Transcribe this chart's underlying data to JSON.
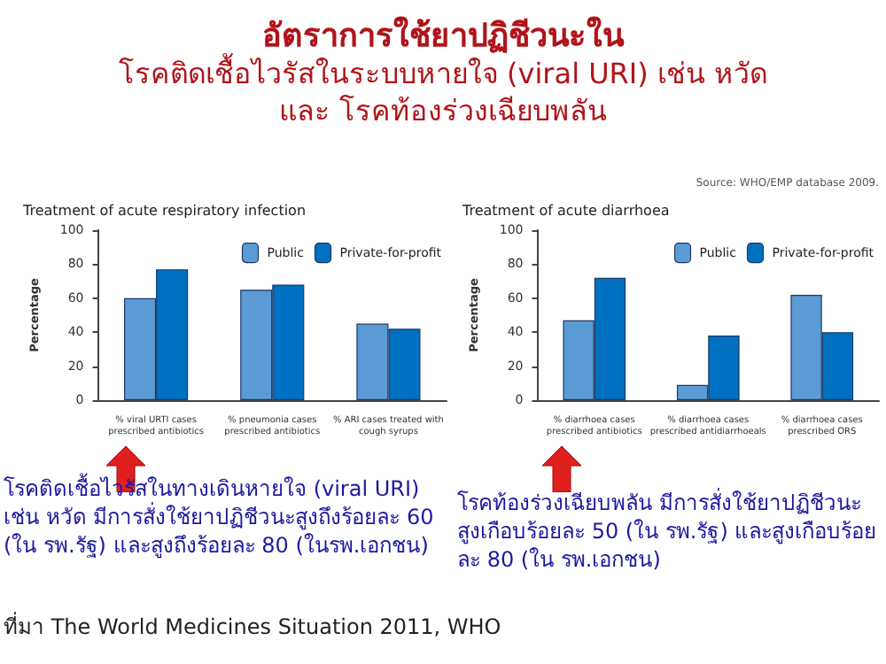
{
  "chart_data": [
    {
      "type": "bar",
      "title": "Treatment of acute respiratory infection",
      "ylabel": "Percentage",
      "categories": [
        "% viral URTI cases\nprescribed antibiotics",
        "% pneumonia cases\nprescribed antibiotics",
        "% ARI cases treated with\ncough syrups"
      ],
      "series": [
        {
          "name": "Public",
          "color": "#5b9bd5",
          "values": [
            60,
            65,
            45
          ]
        },
        {
          "name": "Private-for-profit",
          "color": "#0070c0",
          "values": [
            77,
            68,
            42
          ]
        }
      ],
      "ylim": [
        0,
        100
      ],
      "yticks": [
        0,
        20,
        40,
        60,
        80,
        100
      ],
      "grid": false,
      "legend": "top right",
      "annotations": [
        "อัตราการใช้ยาปฏิชีวนะใน",
        "โรคติดเชื้อไวรัสในระบบหายใจ (viral URI) เช่น หวัด",
        "และ โรคท้องร่วงเฉียบพลัน",
        "โรคติดเชื้อไวรัสในทางเดินหายใจ (viral URI) เช่น หวัด มีการสั่งใช้ยาปฏิชีวนะสูงถึงร้อยละ 60 (ใน รพ.รัฐ) และสูงถึงร้อยละ 80 (ในรพ.เอกชน)",
        "ที่มา The World Medicines Situation 2011, WHO"
      ]
    },
    {
      "type": "bar",
      "title": "Treatment of acute diarrhoea",
      "ylabel": "Percentage",
      "categories": [
        "% diarrhoea cases\nprescribed antibiotics",
        "% diarrhoea cases\nprescribed antidiarrhoeals",
        "% diarrhoea cases\nprescribed ORS"
      ],
      "series": [
        {
          "name": "Public",
          "color": "#5b9bd5",
          "values": [
            47,
            9,
            62
          ]
        },
        {
          "name": "Private-for-profit",
          "color": "#0070c0",
          "values": [
            72,
            38,
            40
          ]
        }
      ],
      "ylim": [
        0,
        100
      ],
      "yticks": [
        0,
        20,
        40,
        60,
        80,
        100
      ],
      "grid": false,
      "legend": "top right",
      "annotations": [
        "Source: WHO/EMP database 2009.",
        "โรคท้องร่วงเฉียบพลัน มีการสั่งใช้ยาปฏิชีวนะสูงเกือบร้อยละ 50 (ใน รพ.รัฐ) และสูงเกือบร้อยละ 80 (ใน รพ.เอกชน)"
      ]
    }
  ]
}
